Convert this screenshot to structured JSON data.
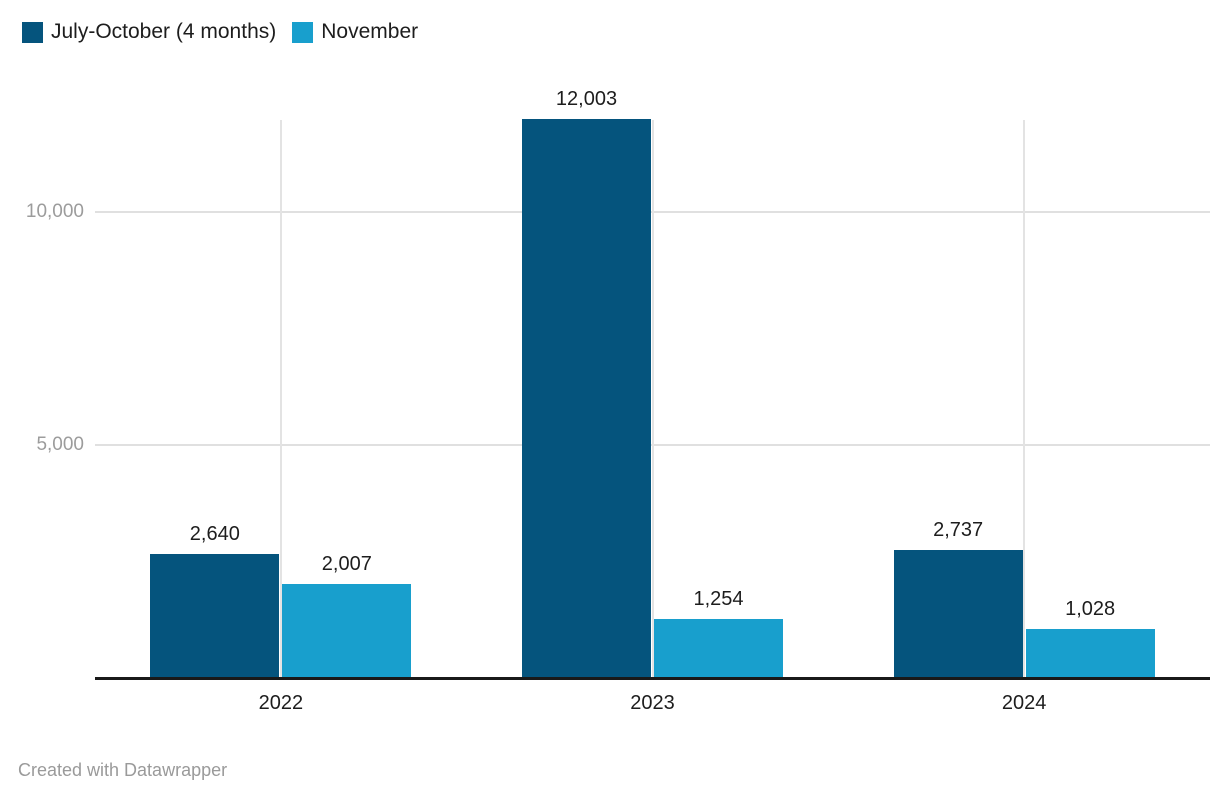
{
  "footer": {
    "credit": "Created with Datawrapper"
  },
  "colors": {
    "background": "#ffffff",
    "series_dark": "#05547d",
    "series_light": "#189fcd",
    "gridline": "#e0e0e0",
    "axis_line": "#191919",
    "value_label": "#1d1d1d",
    "tick_label": "#9c9c9c",
    "footer_text": "#9a9a9a"
  },
  "chart_data": {
    "type": "bar",
    "title": "",
    "xlabel": "",
    "ylabel": "",
    "categories": [
      "2022",
      "2023",
      "2024"
    ],
    "series": [
      {
        "name": "July-October (4 months)",
        "color": "#05547d",
        "values": [
          2640,
          12003,
          2737
        ],
        "value_labels": [
          "2,640",
          "12,003",
          "2,737"
        ]
      },
      {
        "name": "November",
        "color": "#189fcd",
        "values": [
          2007,
          1254,
          1028
        ],
        "value_labels": [
          "2,007",
          "1,254",
          "1,028"
        ]
      }
    ],
    "y_ticks": [
      {
        "value": 5000,
        "label": "5,000"
      },
      {
        "value": 10000,
        "label": "10,000"
      }
    ],
    "ylim": [
      0,
      12003
    ],
    "grid": "horizontal gridlines at ticks plus one vertical gridline per category",
    "legend_position": "top-left",
    "value_labels_shown": true
  }
}
